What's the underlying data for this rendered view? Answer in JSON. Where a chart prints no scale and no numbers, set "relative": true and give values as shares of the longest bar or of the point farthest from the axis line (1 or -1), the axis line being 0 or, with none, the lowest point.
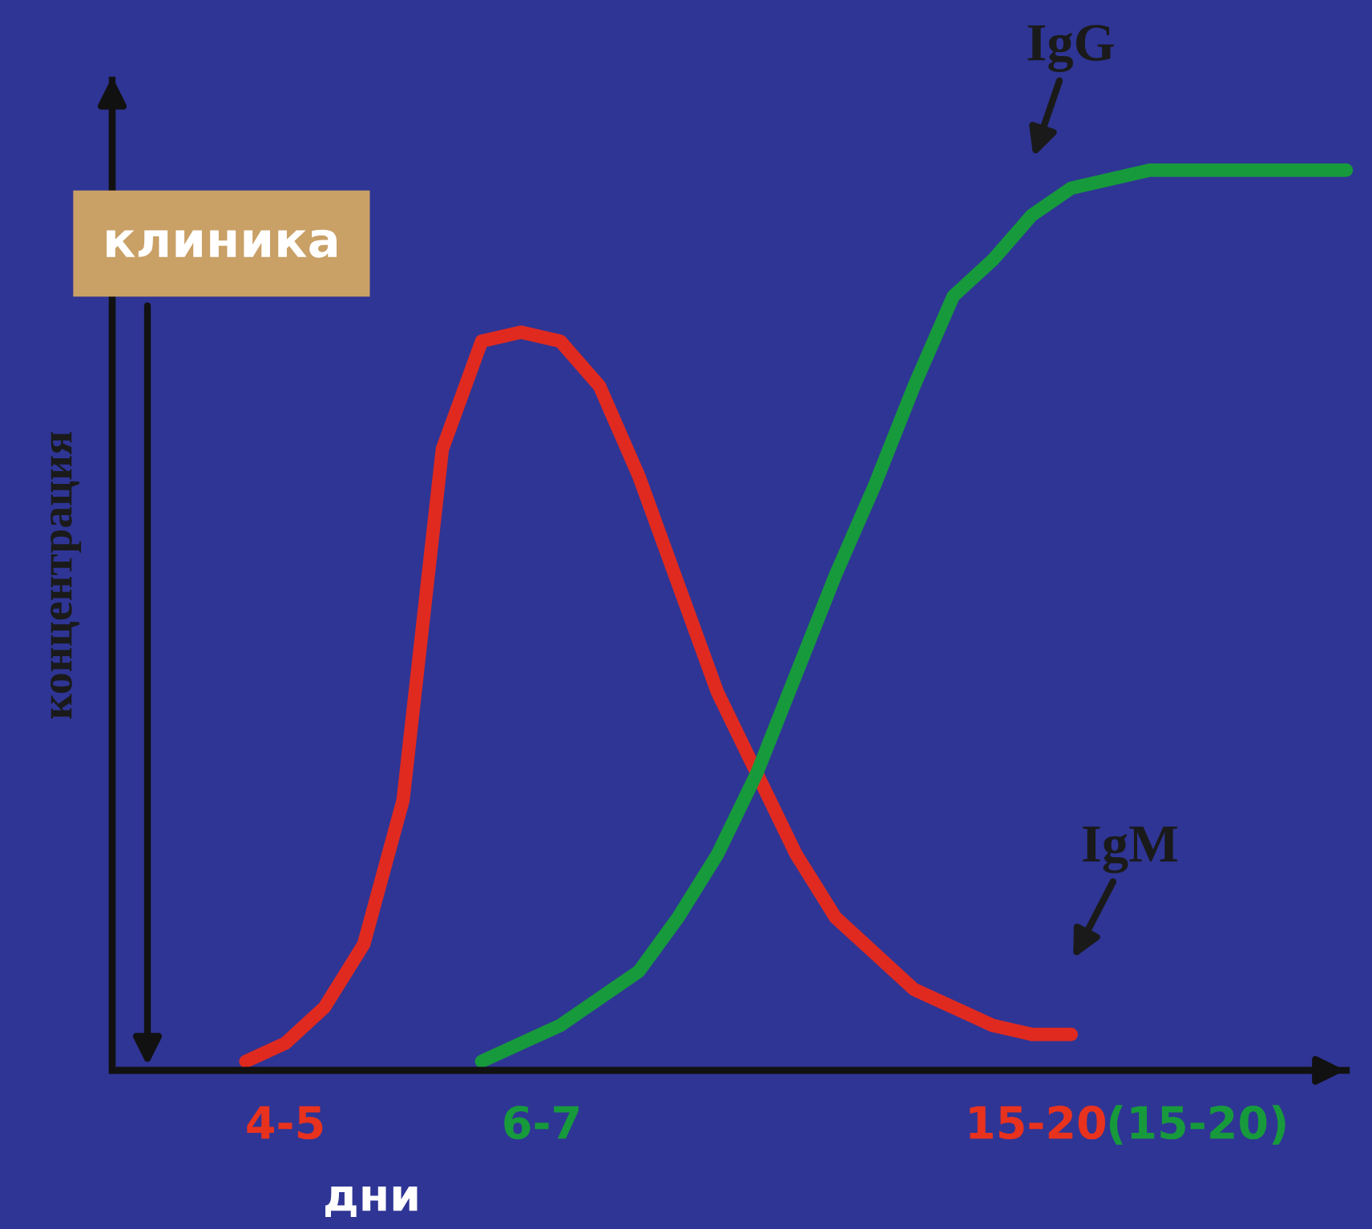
{
  "chart_data": {
    "type": "line",
    "relative": true,
    "ylabel": "концентрация",
    "xlabel": "дни",
    "categories": [
      null,
      null,
      null,
      null,
      null,
      null,
      null,
      null,
      null,
      null,
      null,
      null,
      null,
      null,
      null,
      null,
      null,
      null,
      null,
      null,
      null,
      null,
      null,
      null,
      null,
      null,
      null,
      null,
      null,
      null,
      null,
      null
    ],
    "series": [
      {
        "name": "IgM",
        "color": "#e02a20",
        "values": [
          null,
          null,
          null,
          0.01,
          0.03,
          0.07,
          0.14,
          0.3,
          0.69,
          0.81,
          0.82,
          0.81,
          0.76,
          0.66,
          0.54,
          0.42,
          0.33,
          0.24,
          0.17,
          0.13,
          0.09,
          0.07,
          0.05,
          0.04,
          0.04,
          null,
          null,
          null,
          null,
          null,
          null,
          null
        ]
      },
      {
        "name": "IgG",
        "color": "#179a3c",
        "values": [
          null,
          null,
          null,
          null,
          null,
          null,
          null,
          null,
          null,
          0.01,
          0.03,
          0.05,
          0.08,
          0.11,
          0.17,
          0.24,
          0.33,
          0.44,
          0.55,
          0.65,
          0.76,
          0.86,
          0.9,
          0.95,
          0.98,
          0.99,
          1,
          1,
          1,
          1,
          1,
          1
        ]
      }
    ],
    "annotations": [
      "клиника",
      "4-5",
      "6-7",
      "15-20",
      "(15-20)"
    ],
    "marker": "none",
    "line_style": "solid",
    "grid": false,
    "legend": false
  }
}
